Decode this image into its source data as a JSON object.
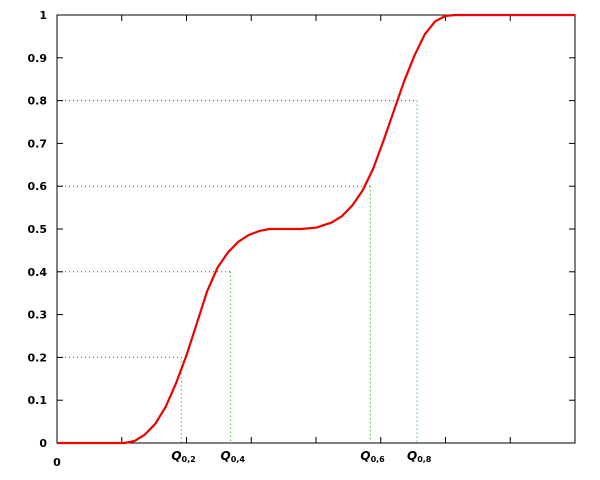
{
  "chart_data": {
    "type": "line",
    "title": "",
    "xlabel": "",
    "ylabel": "",
    "xlim": [
      0,
      1
    ],
    "ylim": [
      0,
      1
    ],
    "grid": false,
    "x_tick_labels": [
      "0"
    ],
    "y_ticks": [
      0,
      0.1,
      0.2,
      0.3,
      0.4,
      0.5,
      0.6,
      0.7,
      0.8,
      0.9,
      1
    ],
    "y_tick_labels": [
      "0",
      "0.1",
      "0.2",
      "0.3",
      "0.4",
      "0.5",
      "0.6",
      "0.7",
      "0.8",
      "0.9",
      "1"
    ],
    "series": [
      {
        "color": "#ee0000",
        "x": [
          0,
          0.05,
          0.1,
          0.13,
          0.15,
          0.17,
          0.19,
          0.21,
          0.23,
          0.25,
          0.27,
          0.29,
          0.31,
          0.33,
          0.35,
          0.37,
          0.39,
          0.41,
          0.43,
          0.45,
          0.47,
          0.5,
          0.53,
          0.55,
          0.57,
          0.59,
          0.61,
          0.63,
          0.65,
          0.67,
          0.69,
          0.71,
          0.73,
          0.75,
          0.77,
          0.79,
          0.81,
          0.83,
          0.85,
          0.87,
          0.89,
          0.91,
          0.95,
          1
        ],
        "y": [
          0,
          0,
          0,
          0,
          0.005,
          0.02,
          0.045,
          0.085,
          0.14,
          0.205,
          0.28,
          0.355,
          0.41,
          0.445,
          0.47,
          0.486,
          0.495,
          0.5,
          0.5,
          0.5,
          0.5,
          0.503,
          0.515,
          0.53,
          0.555,
          0.59,
          0.64,
          0.705,
          0.775,
          0.845,
          0.905,
          0.955,
          0.985,
          0.998,
          1,
          1,
          1,
          1,
          1,
          1,
          1,
          1,
          1,
          1
        ]
      }
    ],
    "quantiles": [
      {
        "label": "Q",
        "sub": "0,2",
        "p": 0.2,
        "x": 0.24
      },
      {
        "label": "Q",
        "sub": "0,4",
        "p": 0.4,
        "x": 0.335
      },
      {
        "label": "Q",
        "sub": "0,6",
        "p": 0.6,
        "x": 0.605
      },
      {
        "label": "Q",
        "sub": "0,8",
        "p": 0.8,
        "x": 0.695
      }
    ],
    "colors": {
      "curve": "#ee0000",
      "guides": "#009900",
      "axes": "#000000"
    }
  }
}
